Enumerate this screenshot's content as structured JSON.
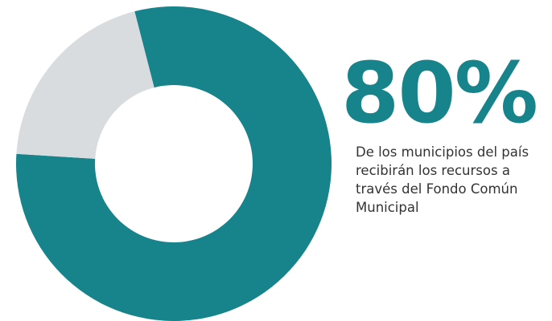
{
  "chart_data": {
    "type": "pie",
    "donut": true,
    "values": [
      80,
      20
    ],
    "value_labels": [
      "80%",
      null
    ],
    "colors": [
      "#17838a",
      "#d8dcdf"
    ],
    "annotation": "De los municipios del país recibirán los recursos a través del Fondo Común Municipal"
  }
}
